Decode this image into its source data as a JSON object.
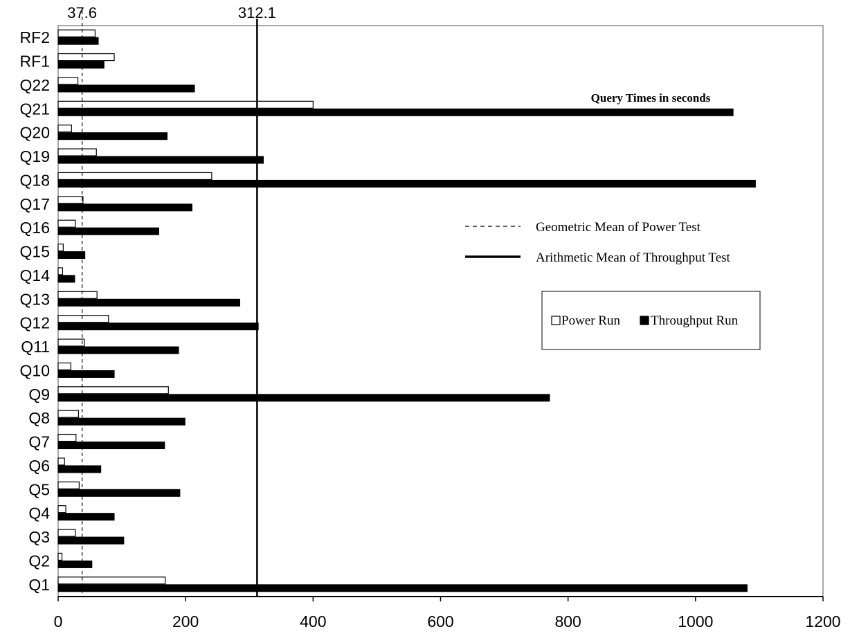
{
  "chart_data": {
    "type": "bar",
    "orientation": "horizontal",
    "title": "Query Times in seconds",
    "categories": [
      "Q1",
      "Q2",
      "Q3",
      "Q4",
      "Q5",
      "Q6",
      "Q7",
      "Q8",
      "Q9",
      "Q10",
      "Q11",
      "Q12",
      "Q13",
      "Q14",
      "Q15",
      "Q16",
      "Q17",
      "Q18",
      "Q19",
      "Q20",
      "Q21",
      "Q22",
      "RF1",
      "RF2"
    ],
    "series": [
      {
        "name": "Power Run",
        "color": "#ffffff",
        "values": [
          168,
          6,
          27,
          12,
          33,
          10,
          28,
          32,
          173,
          20,
          41,
          79,
          61,
          7,
          8,
          27,
          39,
          241,
          60,
          21,
          400,
          31,
          88,
          58
        ]
      },
      {
        "name": "Throughput Run",
        "color": "#000000",
        "values": [
          1081,
          53,
          103,
          88,
          191,
          67,
          167,
          199,
          771,
          88,
          189,
          314,
          285,
          26,
          42,
          158,
          210,
          1094,
          322,
          171,
          1059,
          214,
          72,
          63
        ]
      }
    ],
    "xlim": [
      0,
      1200
    ],
    "xticks": [
      0,
      200,
      400,
      600,
      800,
      1000,
      1200
    ],
    "xlabel": "",
    "ylabel": "",
    "reference_lines": [
      {
        "name": "Geometric Mean of Power Test",
        "value": 37.6,
        "label": "37.6",
        "style": "dashed"
      },
      {
        "name": "Arithmetic Mean of Throughput Test",
        "value": 312.1,
        "label": "312.1",
        "style": "solid"
      }
    ],
    "legend": {
      "entries": [
        "Power Run",
        "Throughput Run"
      ],
      "placement": "right"
    },
    "grid": false
  }
}
